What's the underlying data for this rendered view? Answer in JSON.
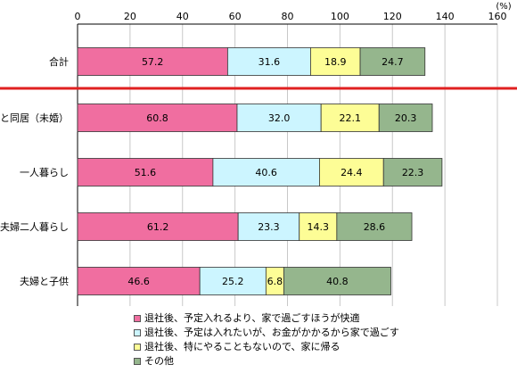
{
  "chart_data": {
    "type": "bar",
    "orientation": "horizontal",
    "stacked": true,
    "unit_label": "(%)",
    "xlim": [
      0,
      160
    ],
    "x_ticks": [
      0,
      20,
      40,
      60,
      80,
      100,
      120,
      140,
      160
    ],
    "categories": [
      "合計",
      "親と同居（未婚）",
      "一人暮らし",
      "夫婦二人暮らし",
      "夫婦と子供"
    ],
    "series": [
      {
        "name": "退社後、予定入れるより、家で過ごすほうが快適",
        "color": "#f06ea0",
        "values": [
          57.2,
          60.8,
          51.6,
          61.2,
          46.6
        ]
      },
      {
        "name": "退社後、予定は入れたいが、お金がかかるから家で過ごす",
        "color": "#ccf5ff",
        "values": [
          31.6,
          32.0,
          40.6,
          23.3,
          25.2
        ]
      },
      {
        "name": "退社後、特にやることもないので、家に帰る",
        "color": "#fdfd96",
        "values": [
          18.9,
          22.1,
          24.4,
          14.3,
          6.8
        ]
      },
      {
        "name": "その他",
        "color": "#95b68d",
        "values": [
          24.7,
          20.3,
          22.3,
          28.6,
          40.8
        ]
      }
    ],
    "grid": true,
    "separator_color": "#e02020",
    "legend_position": "bottom"
  }
}
